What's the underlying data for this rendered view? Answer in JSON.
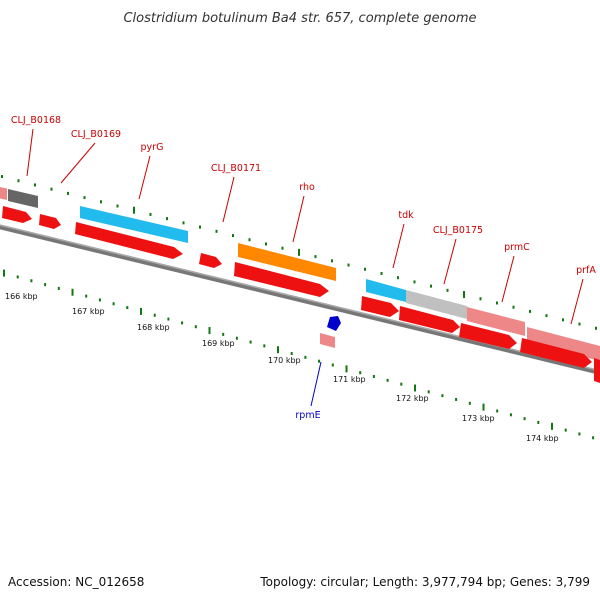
{
  "header": {
    "title": "Clostridium botulinum Ba4 str. 657, complete genome"
  },
  "footer": {
    "accession": "Accession: NC_012658",
    "topology": "Topology: circular; Length: 3,977,794 bp; Genes: 3,799"
  },
  "colors": {
    "cds_red": "#ee1111",
    "pink": "#ee8888",
    "cyan": "#22bbee",
    "orange": "#ff8800",
    "gray_light": "#c0c0c0",
    "gray_dark": "#666666",
    "backbone": "#777777",
    "tick_green": "#117711",
    "label_red": "#cc0000",
    "label_blue": "#0000cc"
  },
  "gene_labels": [
    "CLJ_B0168",
    "CLJ_B0169",
    "pyrG",
    "CLJ_B0171",
    "rho",
    "tdk",
    "CLJ_B0175",
    "prmC",
    "prfA"
  ],
  "lower_labels": [
    "rpmE"
  ],
  "kbp_labels": [
    "166 kbp",
    "167 kbp",
    "168 kbp",
    "169 kbp",
    "170 kbp",
    "171 kbp",
    "172 kbp",
    "173 kbp",
    "174 kbp"
  ]
}
